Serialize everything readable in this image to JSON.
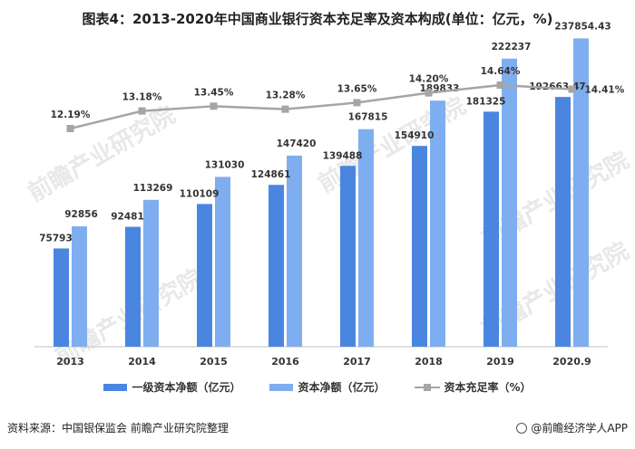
{
  "title": "图表4：2013-2020年中国商业银行资本充足率及资本构成(单位：亿元，%)",
  "footer": {
    "source": "资料来源：中国银保监会 前瞻产业研究院整理",
    "brand": "@前瞻经济学人APP"
  },
  "watermark": "前瞻产业研究院",
  "colors": {
    "tier1": "#4a86e0",
    "net": "#7eaef0",
    "ratio": "#a5a5a5"
  },
  "chart_data": {
    "type": "bar",
    "title": "图表4：2013-2020年中国商业银行资本充足率及资本构成(单位：亿元，%)",
    "categories": [
      "2013",
      "2014",
      "2015",
      "2016",
      "2017",
      "2018",
      "2019",
      "2020.9"
    ],
    "series": [
      {
        "name": "一级资本净额（亿元）",
        "type": "bar",
        "values": [
          75793,
          92481,
          110109,
          124861,
          139488,
          154910,
          181325,
          192663.47
        ],
        "labels": [
          "75793",
          "92481",
          "110109",
          "124861",
          "139488",
          "154910",
          "181325",
          "192663.47"
        ]
      },
      {
        "name": "资本净额（亿元）",
        "type": "bar",
        "values": [
          92856,
          113269,
          131030,
          147420,
          167815,
          189833,
          222237,
          237854.43
        ],
        "labels": [
          "92856",
          "113269",
          "131030",
          "147420",
          "167815",
          "189833",
          "222237",
          "237854.43"
        ]
      },
      {
        "name": "资本充足率（%）",
        "type": "line",
        "values": [
          12.19,
          13.18,
          13.45,
          13.28,
          13.65,
          14.2,
          14.64,
          14.41
        ],
        "labels": [
          "12.19%",
          "13.18%",
          "13.45%",
          "13.28%",
          "13.65%",
          "14.20%",
          "14.64%",
          "14.41%"
        ]
      }
    ],
    "ylim_bar": [
      0,
      250000
    ],
    "legend_position": "bottom",
    "grid": false
  }
}
